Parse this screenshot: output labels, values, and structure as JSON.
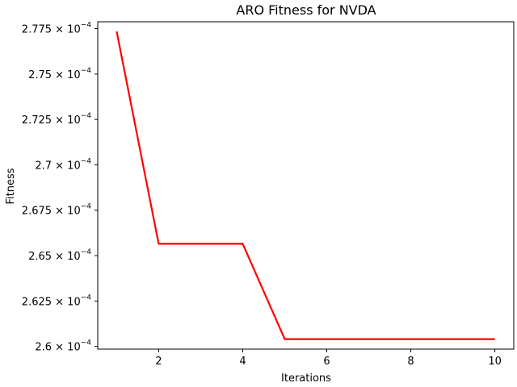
{
  "chart_data": {
    "type": "line",
    "title": "ARO Fitness for NVDA",
    "xlabel": "Iterations",
    "ylabel": "Fitness",
    "xlim": [
      0.55,
      10.45
    ],
    "ylim": [
      0.00025985,
      0.00027788
    ],
    "xticks": [
      2,
      4,
      6,
      8,
      10
    ],
    "yticks": [
      {
        "value": 0.00026,
        "mantissa": "2.6",
        "exp": "−4"
      },
      {
        "value": 0.0002625,
        "mantissa": "2.625",
        "exp": "−4"
      },
      {
        "value": 0.000265,
        "mantissa": "2.65",
        "exp": "−4"
      },
      {
        "value": 0.0002675,
        "mantissa": "2.675",
        "exp": "−4"
      },
      {
        "value": 0.00027,
        "mantissa": "2.7",
        "exp": "−4"
      },
      {
        "value": 0.0002725,
        "mantissa": "2.725",
        "exp": "−4"
      },
      {
        "value": 0.000275,
        "mantissa": "2.75",
        "exp": "−4"
      },
      {
        "value": 0.0002775,
        "mantissa": "2.775",
        "exp": "−4"
      }
    ],
    "ytick_times": "×",
    "ytick_base": "10",
    "grid": false,
    "series": [
      {
        "color": "#ff0000",
        "x": [
          1,
          2,
          3,
          4,
          5,
          6,
          7,
          8,
          9,
          10
        ],
        "y": [
          0.00027735,
          0.00026565,
          0.00026565,
          0.00026565,
          0.0002604,
          0.0002604,
          0.0002604,
          0.0002604,
          0.0002604,
          0.0002604
        ]
      }
    ]
  }
}
